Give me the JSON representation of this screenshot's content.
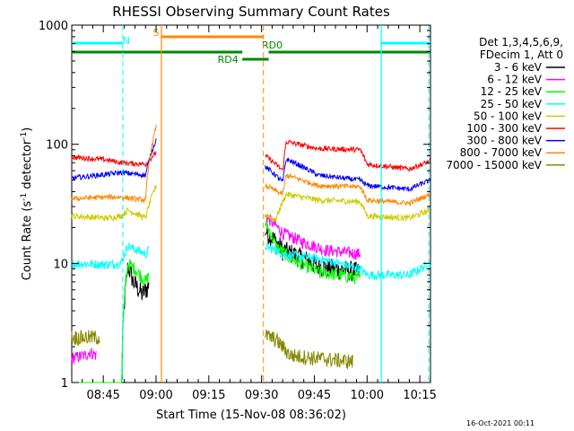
{
  "chart_data": {
    "type": "line",
    "title": "RHESSI Observing Summary Count Rates",
    "xlabel": "Start Time (15-Nov-08 08:36:02)",
    "ylabel_main": "Count Rate (s",
    "ylabel_sup1": "-1",
    "ylabel_mid": " detector",
    "ylabel_sup2": "-1",
    "ylabel_end": ")",
    "y_scale": "log",
    "ylim": [
      1,
      1000
    ],
    "xlim_minutes": [
      0,
      102
    ],
    "x_ticks": [
      {
        "label": "08:45",
        "t": 8.97
      },
      {
        "label": "09:00",
        "t": 23.97
      },
      {
        "label": "09:15",
        "t": 38.97
      },
      {
        "label": "09:30",
        "t": 53.97
      },
      {
        "label": "09:45",
        "t": 68.97
      },
      {
        "label": "10:00",
        "t": 83.97
      },
      {
        "label": "10:15",
        "t": 98.97
      }
    ],
    "y_ticks": [
      {
        "label": "1",
        "v": 1
      },
      {
        "label": "10",
        "v": 10
      },
      {
        "label": "100",
        "v": 100
      },
      {
        "label": "1000",
        "v": 1000
      }
    ],
    "legend": {
      "header1": "Det 1,3,4,5,6,9,",
      "header2": "FDecim 1, Att 0",
      "placement": "right"
    },
    "series": [
      {
        "name": "3 - 6 keV",
        "color": "#000000",
        "pre": [
          [
            0,
            0
          ],
          [
            14,
            0
          ],
          [
            16,
            9.5
          ],
          [
            17.5,
            7
          ],
          [
            20,
            5.5
          ],
          [
            22,
            6.5
          ]
        ],
        "post": [
          [
            55,
            19
          ],
          [
            60,
            13
          ],
          [
            66,
            11
          ],
          [
            70,
            9.5
          ],
          [
            76,
            9
          ],
          [
            82,
            8.5
          ]
        ],
        "noise": 0.2
      },
      {
        "name": "6 - 12 keV",
        "color": "#ff00ff",
        "pre": [
          [
            0,
            1.6
          ],
          [
            4,
            1.7
          ],
          [
            5,
            1.8
          ],
          [
            7,
            1.7
          ]
        ],
        "post": [
          [
            55,
            25
          ],
          [
            60,
            18
          ],
          [
            66,
            15
          ],
          [
            72,
            13
          ],
          [
            82,
            12
          ]
        ],
        "noise": 0.12
      },
      {
        "name": "12 - 25 keV",
        "color": "#00ff00",
        "pre": [
          [
            0,
            0
          ],
          [
            14,
            0
          ],
          [
            16,
            10
          ],
          [
            18,
            9
          ],
          [
            21,
            7
          ],
          [
            22,
            8
          ]
        ],
        "post": [
          [
            55,
            22
          ],
          [
            58,
            14
          ],
          [
            62,
            11
          ],
          [
            70,
            8.5
          ],
          [
            82,
            7.5
          ]
        ],
        "noise": 0.13
      },
      {
        "name": "25 - 50 keV",
        "color": "#00ffff",
        "pre": [
          [
            0,
            10
          ],
          [
            10,
            9.8
          ],
          [
            14,
            10
          ],
          [
            16,
            14
          ],
          [
            21,
            12
          ],
          [
            22,
            13
          ]
        ],
        "post": [
          [
            55,
            14
          ],
          [
            60,
            12
          ],
          [
            70,
            11
          ],
          [
            82,
            9
          ],
          [
            84,
            8
          ],
          [
            96,
            8
          ],
          [
            102,
            10
          ]
        ],
        "noise": 0.09
      },
      {
        "name": "50 - 100 keV",
        "color": "#cccc00",
        "pre": [
          [
            0,
            25
          ],
          [
            10,
            24
          ],
          [
            14,
            25
          ],
          [
            16,
            28
          ],
          [
            21,
            24
          ],
          [
            24,
            45
          ]
        ],
        "post": [
          [
            55,
            26
          ],
          [
            58,
            23
          ],
          [
            61,
            38
          ],
          [
            70,
            34
          ],
          [
            82,
            33
          ],
          [
            84,
            25
          ],
          [
            96,
            24
          ],
          [
            102,
            28
          ]
        ],
        "noise": 0.06
      },
      {
        "name": "100 - 300 keV",
        "color": "#ff0000",
        "pre": [
          [
            0,
            78
          ],
          [
            10,
            74
          ],
          [
            14,
            70
          ],
          [
            21,
            68
          ],
          [
            24,
            85
          ]
        ],
        "post": [
          [
            55,
            80
          ],
          [
            60,
            60
          ],
          [
            61,
            105
          ],
          [
            70,
            92
          ],
          [
            82,
            90
          ],
          [
            84,
            68
          ],
          [
            96,
            62
          ],
          [
            102,
            72
          ]
        ],
        "noise": 0.05
      },
      {
        "name": "300 - 800 keV",
        "color": "#0000ff",
        "pre": [
          [
            0,
            52
          ],
          [
            10,
            56
          ],
          [
            14,
            58
          ],
          [
            21,
            55
          ],
          [
            24,
            110
          ]
        ],
        "post": [
          [
            55,
            65
          ],
          [
            60,
            48
          ],
          [
            61,
            75
          ],
          [
            70,
            55
          ],
          [
            82,
            50
          ],
          [
            84,
            45
          ],
          [
            96,
            42
          ],
          [
            102,
            50
          ]
        ],
        "noise": 0.05
      },
      {
        "name": "800 - 7000 keV",
        "color": "#ff8800",
        "pre": [
          [
            0,
            35
          ],
          [
            10,
            36
          ],
          [
            14,
            36
          ],
          [
            21,
            34
          ],
          [
            24,
            140
          ]
        ],
        "post": [
          [
            55,
            45
          ],
          [
            60,
            38
          ],
          [
            61,
            55
          ],
          [
            70,
            45
          ],
          [
            82,
            44
          ],
          [
            84,
            34
          ],
          [
            96,
            32
          ],
          [
            102,
            38
          ]
        ],
        "noise": 0.05
      },
      {
        "name": "7000 - 15000 keV",
        "color": "#888800",
        "pre": [
          [
            0,
            2.4
          ],
          [
            8,
            2.4
          ]
        ],
        "post": [
          [
            55,
            2.5
          ],
          [
            58,
            2.3
          ],
          [
            62,
            1.7
          ],
          [
            70,
            1.6
          ],
          [
            80,
            1.5
          ]
        ],
        "noise": 0.15
      }
    ],
    "annotations": {
      "saa_label": "S",
      "night_label": "N",
      "rd0_label": "RD0",
      "rd4_label": "RD4"
    },
    "flags": {
      "night_intervals": [
        [
          0,
          14.5
        ],
        [
          88,
          102
        ]
      ],
      "night_color": "#00ffff",
      "saa_interval": [
        25.5,
        54.5
      ],
      "saa_color": "#ff8800",
      "decim_segments": [
        [
          0,
          48.5
        ],
        [
          48.5,
          56
        ],
        [
          56,
          102
        ]
      ],
      "decim_color": "#008800",
      "dashed_vlines": [
        {
          "t": 14.5,
          "color": "#00ffff"
        },
        {
          "t": 54.5,
          "color": "#ff8800"
        },
        {
          "t": 101.5,
          "color": "#00ffff"
        }
      ],
      "solid_vlines": [
        {
          "t": 25.5,
          "color": "#ff8800"
        },
        {
          "t": 88,
          "color": "#00ffff"
        }
      ]
    },
    "grid": false,
    "footer_stamp": "16-Oct-2021 00:11"
  }
}
